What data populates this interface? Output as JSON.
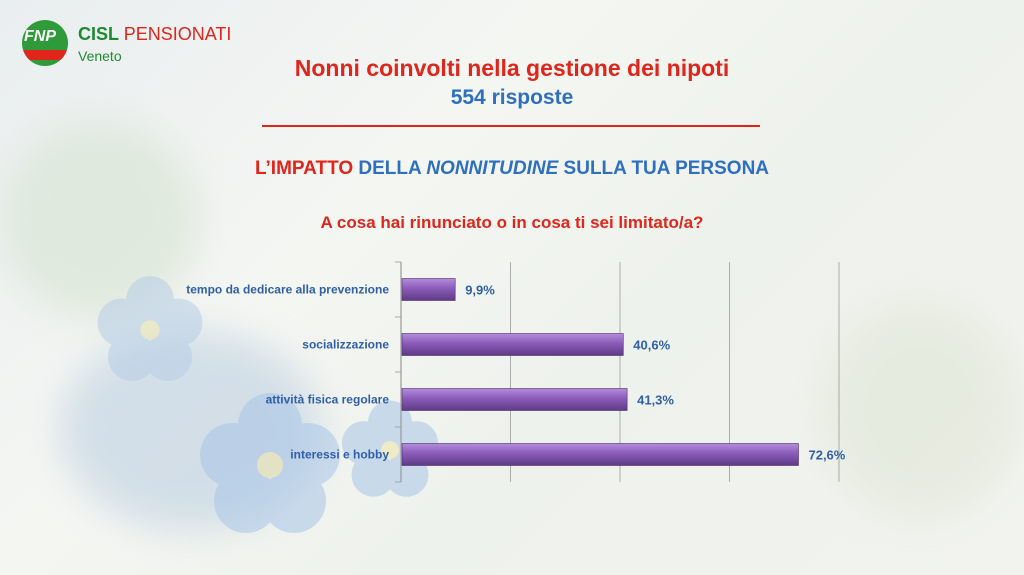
{
  "logo": {
    "badge": "FNP",
    "brand_cisl": "CISL",
    "brand_pensionati": "PENSIONATI",
    "region": "Veneto"
  },
  "title": "Nonni coinvolti nella gestione dei nipoti",
  "subtitle": "554 risposte",
  "heading": {
    "part1": "L’IMPATTO",
    "part2": "DELLA",
    "part3": "NONNITUDINE",
    "part4": "SULLA TUA PERSONA"
  },
  "question": "A cosa hai rinunciato o in cosa ti sei limitato/a?",
  "colors": {
    "bar": "#7a4fa6",
    "bar_light": "#a77fd0",
    "label": "#2f5fa8",
    "grid": "#9a9a9a",
    "red": "#e0251b",
    "blue": "#2f6fc0"
  },
  "chart_data": {
    "type": "bar",
    "orientation": "horizontal",
    "categories": [
      "tempo da dedicare alla prevenzione",
      "socializzazione",
      "attività fisica regolare",
      "interessi e hobby"
    ],
    "values": [
      9.9,
      40.6,
      41.3,
      72.6
    ],
    "value_labels": [
      "9,9%",
      "40,6%",
      "41,3%",
      "72,6%"
    ],
    "xlim": [
      0,
      80
    ],
    "grid": true,
    "title": "",
    "xlabel": "",
    "ylabel": ""
  }
}
